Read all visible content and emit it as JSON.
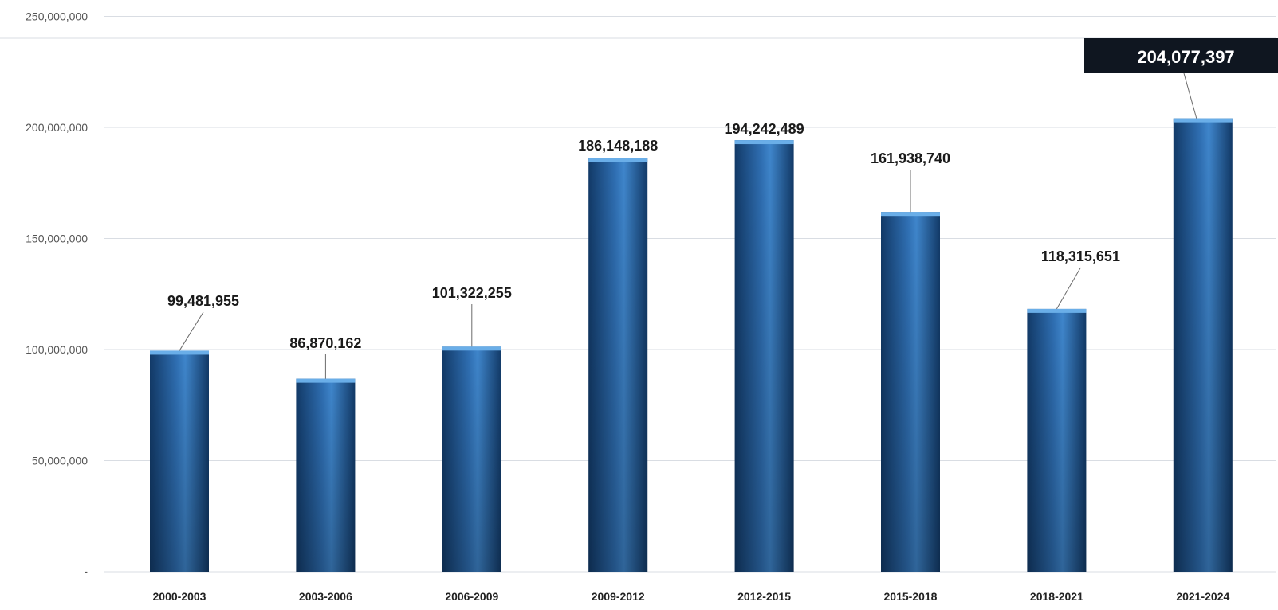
{
  "chart_data": {
    "type": "bar",
    "categories": [
      "2000-2003",
      "2003-2006",
      "2006-2009",
      "2009-2012",
      "2012-2015",
      "2015-2018",
      "2018-2021",
      "2021-2024"
    ],
    "values": [
      99481955,
      86870162,
      101322255,
      186148188,
      194242489,
      161938740,
      118315651,
      204077397
    ],
    "value_labels": [
      "99,481,955",
      "86,870,162",
      "101,322,255",
      "186,148,188",
      "194,242,489",
      "161,938,740",
      "118,315,651",
      "204,077,397"
    ],
    "highlight_index": 7,
    "y_ticks": [
      {
        "value": 50000000,
        "label": "50,000,000"
      },
      {
        "value": 100000000,
        "label": "100,000,000"
      },
      {
        "value": 150000000,
        "label": "150,000,000"
      },
      {
        "value": 200000000,
        "label": "200,000,000"
      },
      {
        "value": 250000000,
        "label": "250,000,000"
      }
    ],
    "ylim": [
      0,
      250000000
    ],
    "grid": true,
    "colors": {
      "bar_light": "#3f86cc",
      "bar_dark": "#123a68",
      "bar_top": "#6aaee8",
      "grid": "#d9dde3",
      "highlight_box": "#0f1620",
      "leader": "#6b6b6b"
    }
  }
}
